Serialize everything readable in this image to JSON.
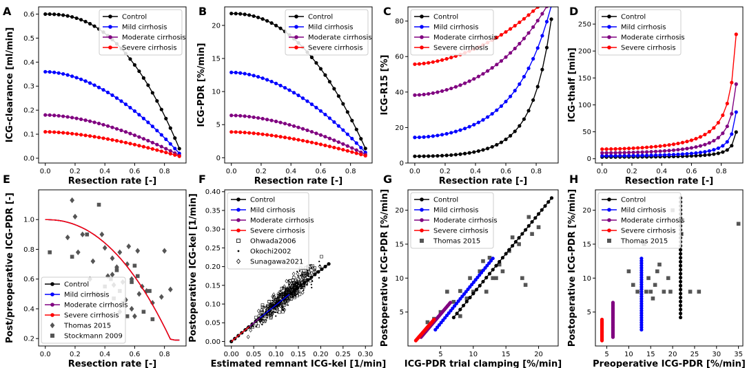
{
  "colors": {
    "control": "#000000",
    "mild": "#0000ff",
    "moderate": "#800080",
    "severe": "#ff0000",
    "data_gray": "#555555"
  },
  "chart_data": [
    {
      "id": "A",
      "type": "line",
      "panel_label": "A",
      "xlabel": "Resection rate [-]",
      "ylabel": "ICG-clearance [ml/min]",
      "xlim": [
        -0.045,
        0.945
      ],
      "ylim": [
        -0.02,
        0.63
      ],
      "xticks": [
        0.0,
        0.2,
        0.4,
        0.6,
        0.8
      ],
      "xtick_labels": [
        "0.0",
        "0.2",
        "0.4",
        "0.6",
        "0.8"
      ],
      "yticks": [
        0.0,
        0.1,
        0.2,
        0.3,
        0.4,
        0.5,
        0.6
      ],
      "ytick_labels": [
        "0.0",
        "0.1",
        "0.2",
        "0.3",
        "0.4",
        "0.5",
        "0.6"
      ],
      "legend_position": "top-right",
      "series": [
        {
          "name": "Control",
          "color": "#000000",
          "marker": "o",
          "formula": "power",
          "y0": 0.6,
          "yend": 0.04,
          "p": 2.4
        },
        {
          "name": "Mild cirrhosis",
          "color": "#0000ff",
          "marker": "o",
          "formula": "power",
          "y0": 0.36,
          "yend": 0.02,
          "p": 1.8
        },
        {
          "name": "Moderate cirrhosis",
          "color": "#800080",
          "marker": "o",
          "formula": "power",
          "y0": 0.18,
          "yend": 0.012,
          "p": 1.7
        },
        {
          "name": "Severe cirrhosis",
          "color": "#ff0000",
          "marker": "o",
          "formula": "power",
          "y0": 0.11,
          "yend": 0.008,
          "p": 1.6
        }
      ]
    },
    {
      "id": "B",
      "type": "line",
      "panel_label": "B",
      "xlabel": "Resection rate [-]",
      "ylabel": "ICG-PDR [%/min]",
      "xlim": [
        -0.045,
        0.945
      ],
      "ylim": [
        -0.8,
        22.8
      ],
      "xticks": [
        0.0,
        0.2,
        0.4,
        0.6,
        0.8
      ],
      "xtick_labels": [
        "0.0",
        "0.2",
        "0.4",
        "0.6",
        "0.8"
      ],
      "yticks": [
        0,
        5,
        10,
        15,
        20
      ],
      "ytick_labels": [
        "0",
        "5",
        "10",
        "15",
        "20"
      ],
      "legend_position": "top-right",
      "series": [
        {
          "name": "Control",
          "color": "#000000",
          "marker": "o",
          "formula": "power",
          "y0": 21.8,
          "yend": 1.4,
          "p": 2.2
        },
        {
          "name": "Mild cirrhosis",
          "color": "#0000ff",
          "marker": "o",
          "formula": "power",
          "y0": 12.9,
          "yend": 0.8,
          "p": 1.8
        },
        {
          "name": "Moderate cirrhosis",
          "color": "#800080",
          "marker": "o",
          "formula": "power",
          "y0": 6.4,
          "yend": 0.5,
          "p": 1.7
        },
        {
          "name": "Severe cirrhosis",
          "color": "#ff0000",
          "marker": "o",
          "formula": "power",
          "y0": 3.9,
          "yend": 0.3,
          "p": 1.6
        }
      ]
    },
    {
      "id": "C",
      "type": "line",
      "panel_label": "C",
      "xlabel": "Resection rate [-]",
      "ylabel": "ICG-R15 [%]",
      "xlim": [
        -0.045,
        0.945
      ],
      "ylim": [
        0,
        88
      ],
      "xticks": [
        0.0,
        0.2,
        0.4,
        0.6,
        0.8
      ],
      "xtick_labels": [
        "0.0",
        "0.2",
        "0.4",
        "0.6",
        "0.8"
      ],
      "yticks": [
        0,
        20,
        40,
        60,
        80
      ],
      "ytick_labels": [
        "0",
        "20",
        "40",
        "60",
        "80"
      ],
      "legend_position": "top-left",
      "series": [
        {
          "name": "Control",
          "color": "#000000",
          "marker": "o",
          "formula": "r15",
          "pdr": "B0"
        },
        {
          "name": "Mild cirrhosis",
          "color": "#0000ff",
          "marker": "o",
          "formula": "r15",
          "pdr": "B1"
        },
        {
          "name": "Moderate cirrhosis",
          "color": "#800080",
          "marker": "o",
          "formula": "r15",
          "pdr": "B2"
        },
        {
          "name": "Severe cirrhosis",
          "color": "#ff0000",
          "marker": "o",
          "formula": "r15",
          "pdr": "B3"
        }
      ]
    },
    {
      "id": "D",
      "type": "line",
      "panel_label": "D",
      "xlabel": "Resection rate [-]",
      "ylabel": "ICG-thalf [min]",
      "xlim": [
        -0.045,
        0.945
      ],
      "ylim": [
        -8,
        282
      ],
      "xticks": [
        0.0,
        0.2,
        0.4,
        0.6,
        0.8
      ],
      "xtick_labels": [
        "0.0",
        "0.2",
        "0.4",
        "0.6",
        "0.8"
      ],
      "yticks": [
        0,
        50,
        100,
        150,
        200,
        250
      ],
      "ytick_labels": [
        "0",
        "50",
        "100",
        "150",
        "200",
        "250"
      ],
      "legend_position": "top-left",
      "series": [
        {
          "name": "Control",
          "color": "#000000",
          "marker": "o",
          "formula": "thalf",
          "pdr": "B0"
        },
        {
          "name": "Mild cirrhosis",
          "color": "#0000ff",
          "marker": "o",
          "formula": "thalf",
          "pdr": "B1"
        },
        {
          "name": "Moderate cirrhosis",
          "color": "#800080",
          "marker": "o",
          "formula": "thalf",
          "pdr": "B2"
        },
        {
          "name": "Severe cirrhosis",
          "color": "#ff0000",
          "marker": "o",
          "formula": "thalf",
          "pdr": "B3"
        }
      ]
    },
    {
      "id": "E",
      "type": "line",
      "panel_label": "E",
      "xlabel": "Resection rate [-]",
      "ylabel": "Post/preoperative ICG-PDR [-]",
      "xlim": [
        -0.045,
        0.945
      ],
      "ylim": [
        0.15,
        1.2
      ],
      "xticks": [
        0.0,
        0.2,
        0.4,
        0.6,
        0.8
      ],
      "xtick_labels": [
        "0.0",
        "0.2",
        "0.4",
        "0.6",
        "0.8"
      ],
      "yticks": [
        0.2,
        0.4,
        0.6,
        0.8,
        1.0
      ],
      "ytick_labels": [
        "0.2",
        "0.4",
        "0.6",
        "0.8",
        "1.0"
      ],
      "legend_position": "bottom-left",
      "series": [
        {
          "name": "Control",
          "color": "#000000",
          "marker": "",
          "formula": "ratio"
        },
        {
          "name": "Mild cirrhosis",
          "color": "#0000ff",
          "marker": "",
          "formula": "ratio"
        },
        {
          "name": "Moderate cirrhosis",
          "color": "#800080",
          "marker": "",
          "formula": "ratio"
        },
        {
          "name": "Severe cirrhosis",
          "color": "#ff0000",
          "marker": "",
          "formula": "ratio"
        }
      ],
      "scatter": [
        {
          "name": "Thomas 2015",
          "marker": "diamond",
          "color": "#555555",
          "points": [
            [
              0.15,
              0.88
            ],
            [
              0.18,
              1.13
            ],
            [
              0.2,
              1.02
            ],
            [
              0.22,
              0.78
            ],
            [
              0.25,
              0.9
            ],
            [
              0.3,
              0.6
            ],
            [
              0.32,
              0.72
            ],
            [
              0.35,
              0.5
            ],
            [
              0.38,
              0.9
            ],
            [
              0.4,
              0.81
            ],
            [
              0.42,
              0.62
            ],
            [
              0.45,
              0.74
            ],
            [
              0.46,
              0.56
            ],
            [
              0.48,
              0.68
            ],
            [
              0.5,
              0.38
            ],
            [
              0.5,
              0.78
            ],
            [
              0.52,
              0.58
            ],
            [
              0.54,
              0.46
            ],
            [
              0.55,
              0.7
            ],
            [
              0.56,
              0.82
            ],
            [
              0.58,
              0.6
            ],
            [
              0.6,
              0.35
            ],
            [
              0.62,
              0.79
            ],
            [
              0.65,
              0.55
            ],
            [
              0.68,
              0.52
            ],
            [
              0.72,
              0.44
            ],
            [
              0.78,
              0.48
            ],
            [
              0.8,
              0.79
            ],
            [
              0.84,
              0.53
            ],
            [
              0.63,
              0.5
            ],
            [
              0.45,
              0.63
            ],
            [
              0.28,
              0.42
            ],
            [
              0.58,
              0.4
            ]
          ]
        },
        {
          "name": "Stockmann 2009",
          "marker": "square",
          "color": "#555555",
          "points": [
            [
              0.03,
              0.78
            ],
            [
              0.18,
              0.75
            ],
            [
              0.28,
              0.9
            ],
            [
              0.36,
              1.1
            ],
            [
              0.4,
              0.55
            ],
            [
              0.44,
              0.6
            ],
            [
              0.48,
              0.66
            ],
            [
              0.5,
              0.52
            ],
            [
              0.52,
              0.44
            ],
            [
              0.58,
              0.58
            ],
            [
              0.6,
              0.69
            ],
            [
              0.62,
              0.62
            ],
            [
              0.66,
              0.38
            ],
            [
              0.7,
              0.52
            ],
            [
              0.72,
              0.33
            ],
            [
              0.34,
              0.5
            ],
            [
              0.55,
              0.35
            ],
            [
              0.46,
              0.47
            ]
          ]
        }
      ]
    },
    {
      "id": "F",
      "type": "line",
      "panel_label": "F",
      "xlabel": "Estimated remnant ICG-kel [1/min]",
      "ylabel": "Postoperative ICG-kel [1/min]",
      "xlim": [
        -0.015,
        0.315
      ],
      "ylim": [
        -0.012,
        0.405
      ],
      "xticks": [
        0.0,
        0.05,
        0.1,
        0.15,
        0.2,
        0.25,
        0.3
      ],
      "xtick_labels": [
        "0.00",
        "0.05",
        "0.10",
        "0.15",
        "0.20",
        "0.25",
        "0.30"
      ],
      "yticks": [
        0.0,
        0.05,
        0.1,
        0.15,
        0.2,
        0.25,
        0.3,
        0.35,
        0.4
      ],
      "ytick_labels": [
        "0.00",
        "0.05",
        "0.10",
        "0.15",
        "0.20",
        "0.25",
        "0.30",
        "0.35",
        "0.40"
      ],
      "legend_position": "top-left",
      "series": [
        {
          "name": "Control",
          "color": "#000000",
          "marker": "o",
          "formula": "kelline",
          "xmax": 0.218,
          "a": 0.5
        },
        {
          "name": "Mild cirrhosis",
          "color": "#0000ff",
          "marker": "",
          "formula": "kelline",
          "xmax": 0.13,
          "a": 0.5
        },
        {
          "name": "Moderate cirrhosis",
          "color": "#800080",
          "marker": "",
          "formula": "kelline",
          "xmax": 0.064,
          "a": 0.5
        },
        {
          "name": "Severe cirrhosis",
          "color": "#ff0000",
          "marker": "",
          "formula": "kelline",
          "xmax": 0.04,
          "a": 0.5
        }
      ],
      "scatter_legend": [
        {
          "name": "Ohwada2006",
          "marker": "open-square"
        },
        {
          "name": "Okochi2002",
          "marker": "dot"
        },
        {
          "name": "Sunagawa2021",
          "marker": "open-diamond"
        }
      ],
      "cloud": {
        "n": 430,
        "seed": 7,
        "center_x": 0.12,
        "spread_x": 0.045,
        "slope": 1.0,
        "noise": 0.045
      }
    },
    {
      "id": "G",
      "type": "line",
      "panel_label": "G",
      "xlabel": "ICG-PDR trial clamping [%/min]",
      "ylabel": "Postoperative ICG-PDR [%/min]",
      "xlim": [
        0.0,
        23.0
      ],
      "ylim": [
        0.0,
        23.0
      ],
      "xticks": [
        5,
        10,
        15,
        20
      ],
      "xtick_labels": [
        "5",
        "10",
        "15",
        "20"
      ],
      "yticks": [
        5,
        10,
        15,
        20
      ],
      "ytick_labels": [
        "5",
        "10",
        "15",
        "20"
      ],
      "legend_position": "top-left",
      "series": [
        {
          "name": "Control",
          "color": "#000000",
          "marker": "o",
          "formula": "clamp",
          "x0": 7.0,
          "x1": 22.0,
          "y0": 4.2,
          "y1": 21.8
        },
        {
          "name": "Mild cirrhosis",
          "color": "#0000ff",
          "marker": "o",
          "formula": "clamp",
          "x0": 4.2,
          "x1": 13.0,
          "y0": 2.4,
          "y1": 12.9
        },
        {
          "name": "Moderate cirrhosis",
          "color": "#800080",
          "marker": "o",
          "formula": "clamp",
          "x0": 2.0,
          "x1": 6.5,
          "y0": 1.3,
          "y1": 6.4
        },
        {
          "name": "Severe cirrhosis",
          "color": "#ff0000",
          "marker": "o",
          "formula": "clamp",
          "x0": 1.2,
          "x1": 4.0,
          "y0": 0.8,
          "y1": 3.9
        }
      ],
      "scatter": [
        {
          "name": "Thomas 2015",
          "marker": "square",
          "color": "#555555",
          "points": [
            [
              3.0,
              3.5
            ],
            [
              4.0,
              4.0
            ],
            [
              5.0,
              5.0
            ],
            [
              6.0,
              8.0
            ],
            [
              7.0,
              6.5
            ],
            [
              8.0,
              8.1
            ],
            [
              8.0,
              4.4
            ],
            [
              9.0,
              7.0
            ],
            [
              9.5,
              10.0
            ],
            [
              10.0,
              8.0
            ],
            [
              11.0,
              11.0
            ],
            [
              12.0,
              8.0
            ],
            [
              12.5,
              13.0
            ],
            [
              13.0,
              10.0
            ],
            [
              13.5,
              10.0
            ],
            [
              14.0,
              12.0
            ],
            [
              14.5,
              11.0
            ],
            [
              15.5,
              14.0
            ],
            [
              16.0,
              16.0
            ],
            [
              17.0,
              15.0
            ],
            [
              17.5,
              10.0
            ],
            [
              18.0,
              9.0
            ],
            [
              18.5,
              19.0
            ],
            [
              19.0,
              16.5
            ],
            [
              20.0,
              17.5
            ],
            [
              11.5,
              12.5
            ]
          ]
        }
      ]
    },
    {
      "id": "H",
      "type": "scatter",
      "panel_label": "H",
      "xlabel": "Preoperative ICG-PDR [%/min]",
      "ylabel": "Postoperative ICG-PDR [%/min]",
      "xlim": [
        2.4,
        36.0
      ],
      "ylim": [
        0.0,
        23.0
      ],
      "xticks": [
        5,
        10,
        15,
        20,
        25,
        30,
        35
      ],
      "xtick_labels": [
        "5",
        "10",
        "15",
        "20",
        "25",
        "30",
        "35"
      ],
      "yticks": [
        5,
        10,
        15,
        20
      ],
      "ytick_labels": [
        "5",
        "10",
        "15",
        "20"
      ],
      "legend_position": "top-left",
      "series": [
        {
          "name": "Control",
          "color": "#000000",
          "marker": "o",
          "formula": "vertical",
          "x": 21.8,
          "y0": 4.2,
          "y1": 21.8
        },
        {
          "name": "Mild cirrhosis",
          "color": "#0000ff",
          "marker": "o",
          "formula": "vertical",
          "x": 12.9,
          "y0": 2.4,
          "y1": 12.9
        },
        {
          "name": "Moderate cirrhosis",
          "color": "#800080",
          "marker": "o",
          "formula": "vertical",
          "x": 6.4,
          "y0": 1.3,
          "y1": 6.4
        },
        {
          "name": "Severe cirrhosis",
          "color": "#ff0000",
          "marker": "o",
          "formula": "vertical",
          "x": 3.9,
          "y0": 0.8,
          "y1": 3.9
        }
      ],
      "scatter": [
        {
          "name": "Thomas 2015",
          "marker": "square",
          "color": "#555555",
          "points": [
            [
              10.0,
              11.0
            ],
            [
              11.0,
              9.0
            ],
            [
              12.0,
              8.0
            ],
            [
              13.5,
              15.0
            ],
            [
              14.0,
              8.0
            ],
            [
              14.5,
              10.0
            ],
            [
              15.0,
              8.0
            ],
            [
              15.5,
              7.0
            ],
            [
              16.0,
              9.0
            ],
            [
              17.0,
              12.0
            ],
            [
              18.0,
              8.0
            ],
            [
              19.0,
              10.0
            ],
            [
              20.0,
              20.0
            ],
            [
              22.0,
              16.5
            ],
            [
              24.0,
              8.0
            ],
            [
              26.0,
              8.0
            ],
            [
              35.0,
              18.0
            ],
            [
              16.5,
              11.0
            ],
            [
              19.5,
              8.0
            ]
          ]
        }
      ]
    }
  ]
}
